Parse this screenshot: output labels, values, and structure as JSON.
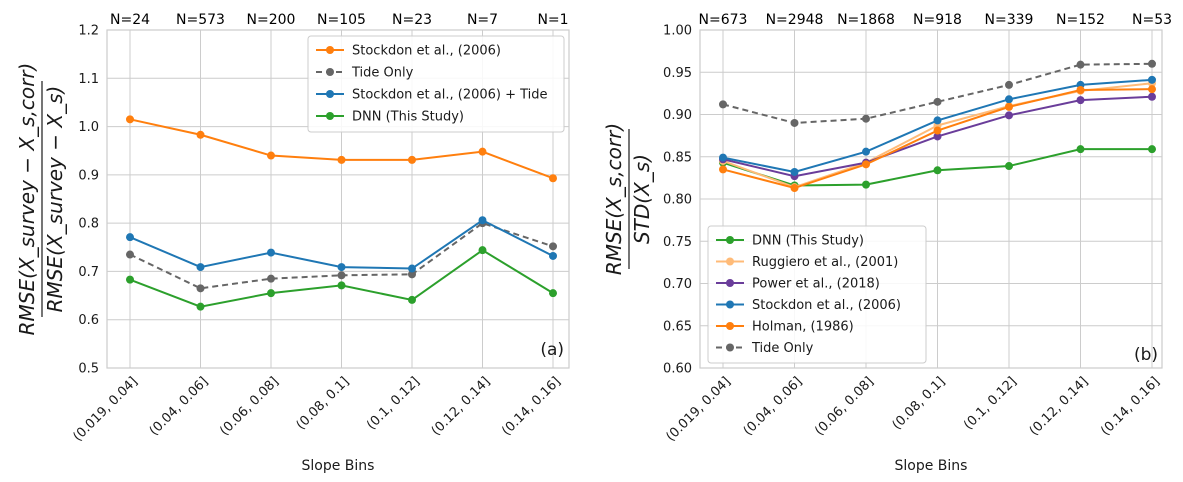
{
  "chart_data": [
    {
      "type": "line",
      "panel_label": "(a)",
      "xlabel": "Slope Bins",
      "ylabel_numerator": "RMSE(X_survey − X_s,corr)",
      "ylabel_denominator": "RMSE(X_survey − X_s)",
      "categories": [
        "(0.019, 0.04]",
        "(0.04, 0.06]",
        "(0.06, 0.08]",
        "(0.08, 0.1]",
        "(0.1, 0.12]",
        "(0.12, 0.14]",
        "(0.14, 0.16]"
      ],
      "top_labels": [
        "N=24",
        "N=573",
        "N=200",
        "N=105",
        "N=23",
        "N=7",
        "N=1"
      ],
      "ylim": [
        0.5,
        1.2
      ],
      "yticks": [
        "0.5",
        "0.6",
        "0.7",
        "0.8",
        "0.9",
        "1.0",
        "1.1",
        "1.2"
      ],
      "grid": true,
      "legend_position": "top-right",
      "series": [
        {
          "name": "Stockdon et al., (2006)",
          "color": "#ff7f0e",
          "dashed": false,
          "values": [
            1.015,
            0.983,
            0.94,
            0.931,
            0.931,
            0.948,
            0.893
          ]
        },
        {
          "name": "Tide Only",
          "color": "#666666",
          "dashed": true,
          "values": [
            0.735,
            0.665,
            0.685,
            0.692,
            0.694,
            0.8,
            0.752
          ]
        },
        {
          "name": "Stockdon et al., (2006) + Tide",
          "color": "#1f77b4",
          "dashed": false,
          "values": [
            0.771,
            0.709,
            0.739,
            0.709,
            0.706,
            0.806,
            0.732
          ]
        },
        {
          "name": "DNN (This Study)",
          "color": "#2ca02c",
          "dashed": false,
          "values": [
            0.683,
            0.627,
            0.655,
            0.671,
            0.641,
            0.744,
            0.655
          ]
        }
      ]
    },
    {
      "type": "line",
      "panel_label": "(b)",
      "xlabel": "Slope Bins",
      "ylabel_numerator": "RMSE(X_s,corr)",
      "ylabel_denominator": "STD(X_s)",
      "categories": [
        "(0.019, 0.04]",
        "(0.04, 0.06]",
        "(0.06, 0.08]",
        "(0.08, 0.1]",
        "(0.1, 0.12]",
        "(0.12, 0.14]",
        "(0.14, 0.16]"
      ],
      "top_labels": [
        "N=673",
        "N=2948",
        "N=1868",
        "N=918",
        "N=339",
        "N=152",
        "N=53"
      ],
      "ylim": [
        0.6,
        1.0
      ],
      "yticks": [
        "0.60",
        "0.65",
        "0.70",
        "0.75",
        "0.80",
        "0.85",
        "0.90",
        "0.95",
        "1.00"
      ],
      "grid": true,
      "legend_position": "bottom-left",
      "series": [
        {
          "name": "DNN (This Study)",
          "color": "#2ca02c",
          "dashed": false,
          "values": [
            0.843,
            0.816,
            0.817,
            0.834,
            0.839,
            0.859,
            0.859
          ]
        },
        {
          "name": "Ruggiero et al., (2001)",
          "color": "#ffbb78",
          "dashed": false,
          "values": [
            0.845,
            0.814,
            0.843,
            0.887,
            0.91,
            0.928,
            0.937
          ]
        },
        {
          "name": "Power et al., (2018)",
          "color": "#6a3d9a",
          "dashed": false,
          "values": [
            0.847,
            0.827,
            0.843,
            0.874,
            0.899,
            0.917,
            0.921
          ]
        },
        {
          "name": "Stockdon et al., (2006)",
          "color": "#1f77b4",
          "dashed": false,
          "values": [
            0.849,
            0.832,
            0.856,
            0.893,
            0.918,
            0.935,
            0.941
          ]
        },
        {
          "name": "Holman, (1986)",
          "color": "#ff7f0e",
          "dashed": false,
          "values": [
            0.835,
            0.813,
            0.841,
            0.881,
            0.909,
            0.929,
            0.93
          ]
        },
        {
          "name": "Tide Only",
          "color": "#666666",
          "dashed": true,
          "values": [
            0.912,
            0.89,
            0.895,
            0.915,
            0.935,
            0.959,
            0.96
          ]
        }
      ]
    }
  ]
}
